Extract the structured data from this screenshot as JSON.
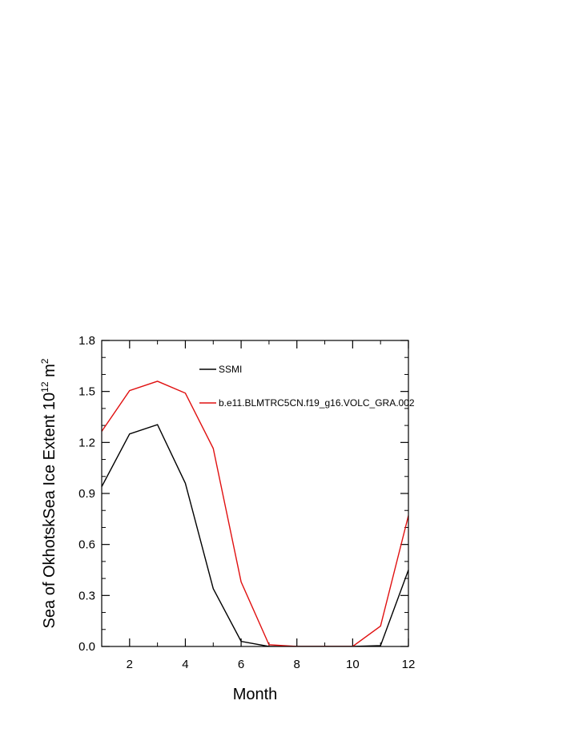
{
  "chart_data": {
    "type": "line",
    "title": "",
    "xlabel": "Month",
    "ylabel_parts": {
      "main": "Sea of OkhotskSea Ice Extent 10",
      "exp1": "12",
      "unit": " m",
      "exp2": "2"
    },
    "xlim": [
      1,
      12
    ],
    "ylim": [
      0.0,
      1.8
    ],
    "x_ticks": [
      2,
      4,
      6,
      8,
      10,
      12
    ],
    "x_tick_labels": [
      "2",
      "4",
      "6",
      "8",
      "10",
      "12"
    ],
    "y_ticks": [
      0.0,
      0.3,
      0.6,
      0.9,
      1.2,
      1.5,
      1.8
    ],
    "y_tick_labels": [
      "0.0",
      "0.3",
      "0.6",
      "0.9",
      "1.2",
      "1.5",
      "1.8"
    ],
    "grid": false,
    "legend_position": "top-center, inside plot",
    "x": [
      1,
      2,
      3,
      4,
      5,
      6,
      7,
      8,
      9,
      10,
      11,
      12
    ],
    "series": [
      {
        "name": "SSMI",
        "color": "#000000",
        "values": [
          0.94,
          1.25,
          1.305,
          0.96,
          0.34,
          0.03,
          0.0,
          0.0,
          0.0,
          0.0,
          0.005,
          0.45
        ]
      },
      {
        "name": "b.e11.BLMTRC5CN.f19_g16.VOLC_GRA.002",
        "color": "#e01010",
        "values": [
          1.265,
          1.505,
          1.56,
          1.49,
          1.165,
          0.38,
          0.01,
          0.0,
          0.0,
          0.0,
          0.12,
          0.77
        ]
      }
    ]
  }
}
